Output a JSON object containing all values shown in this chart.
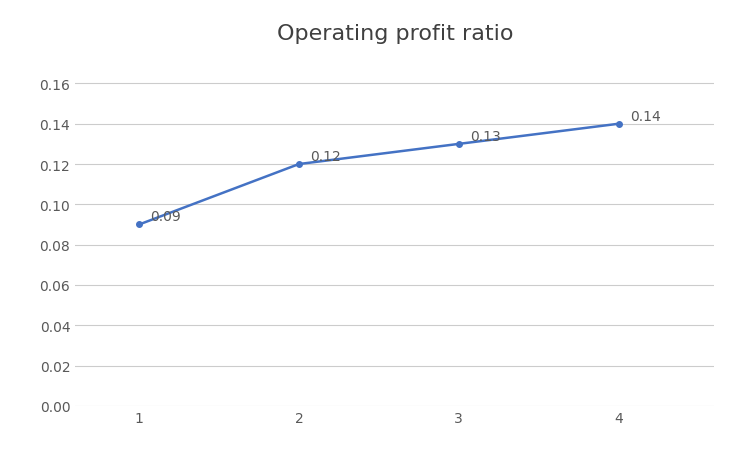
{
  "title": "Operating profit ratio",
  "x": [
    1,
    2,
    3,
    4
  ],
  "y": [
    0.09,
    0.12,
    0.13,
    0.14
  ],
  "labels": [
    "0.09",
    "0.12",
    "0.13",
    "0.14"
  ],
  "line_color": "#4472C4",
  "line_width": 1.8,
  "marker": "o",
  "marker_size": 4,
  "ylim": [
    0.0,
    0.175
  ],
  "yticks": [
    0.0,
    0.02,
    0.04,
    0.06,
    0.08,
    0.1,
    0.12,
    0.14,
    0.16
  ],
  "xticks": [
    1,
    2,
    3,
    4
  ],
  "grid_color": "#cccccc",
  "background_color": "#ffffff",
  "title_fontsize": 16,
  "label_fontsize": 10,
  "tick_fontsize": 10,
  "tick_color": "#595959",
  "label_color": "#595959"
}
